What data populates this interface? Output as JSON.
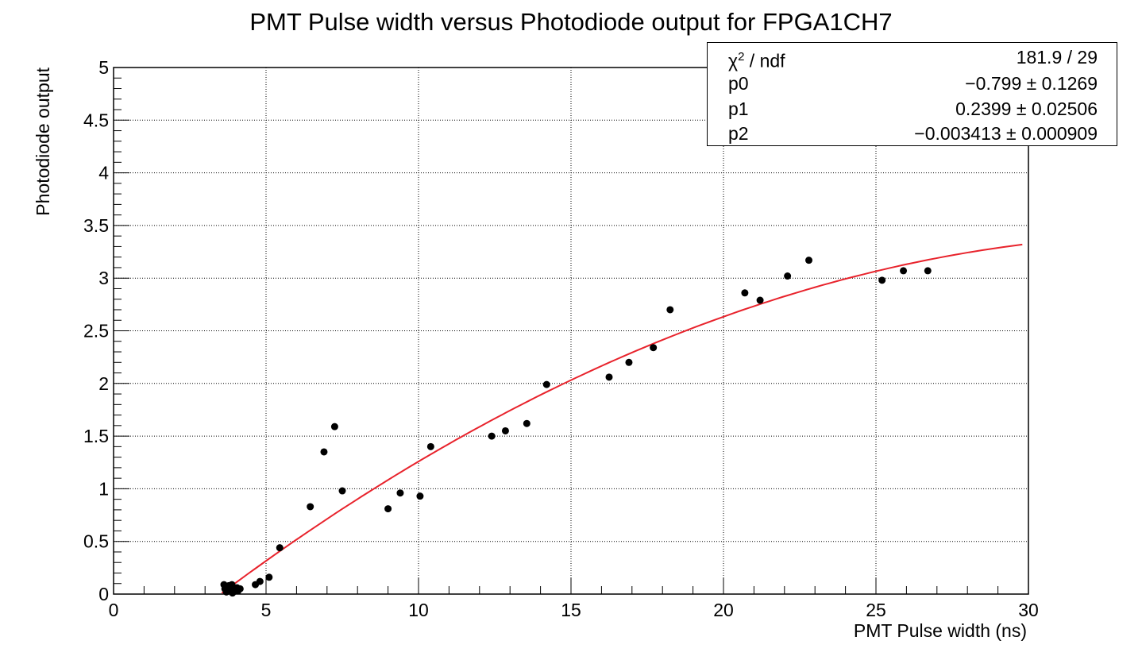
{
  "chart_data": {
    "type": "scatter",
    "title": "PMT Pulse width versus Photodiode output for FPGA1CH7",
    "xlabel": "PMT Pulse width (ns)",
    "ylabel": "Photodiode output",
    "xlim": [
      0,
      30
    ],
    "ylim": [
      0,
      5
    ],
    "x_ticks": [
      "0",
      "5",
      "10",
      "15",
      "20",
      "25",
      "30"
    ],
    "y_ticks": [
      "0",
      "0.5",
      "1",
      "1.5",
      "2",
      "2.5",
      "3",
      "3.5",
      "4",
      "4.5",
      "5"
    ],
    "grid": true,
    "points": [
      {
        "x": 3.62,
        "y": 0.09
      },
      {
        "x": 3.65,
        "y": 0.05
      },
      {
        "x": 3.7,
        "y": 0.02
      },
      {
        "x": 3.78,
        "y": 0.08
      },
      {
        "x": 3.82,
        "y": 0.05
      },
      {
        "x": 3.88,
        "y": 0.09
      },
      {
        "x": 3.9,
        "y": 0.01
      },
      {
        "x": 3.95,
        "y": 0.04
      },
      {
        "x": 4.05,
        "y": 0.06
      },
      {
        "x": 4.08,
        "y": 0.03
      },
      {
        "x": 4.15,
        "y": 0.05
      },
      {
        "x": 4.65,
        "y": 0.09
      },
      {
        "x": 4.8,
        "y": 0.12
      },
      {
        "x": 5.1,
        "y": 0.16
      },
      {
        "x": 5.45,
        "y": 0.44
      },
      {
        "x": 6.45,
        "y": 0.83
      },
      {
        "x": 6.9,
        "y": 1.35
      },
      {
        "x": 7.25,
        "y": 1.59
      },
      {
        "x": 7.5,
        "y": 0.98
      },
      {
        "x": 9.0,
        "y": 0.81
      },
      {
        "x": 9.4,
        "y": 0.96
      },
      {
        "x": 10.05,
        "y": 0.93
      },
      {
        "x": 10.4,
        "y": 1.4
      },
      {
        "x": 12.4,
        "y": 1.5
      },
      {
        "x": 12.85,
        "y": 1.55
      },
      {
        "x": 13.55,
        "y": 1.62
      },
      {
        "x": 14.2,
        "y": 1.99
      },
      {
        "x": 16.25,
        "y": 2.06
      },
      {
        "x": 16.9,
        "y": 2.2
      },
      {
        "x": 17.7,
        "y": 2.34
      },
      {
        "x": 18.25,
        "y": 2.7
      },
      {
        "x": 20.7,
        "y": 2.86
      },
      {
        "x": 21.2,
        "y": 2.79
      },
      {
        "x": 22.1,
        "y": 3.02
      },
      {
        "x": 22.8,
        "y": 3.17
      },
      {
        "x": 25.2,
        "y": 2.98
      },
      {
        "x": 25.9,
        "y": 3.07
      },
      {
        "x": 26.7,
        "y": 3.07
      }
    ],
    "fit": {
      "function": "pol2",
      "color": "#e8232c",
      "x_range": [
        3.55,
        29.8
      ],
      "p0": -0.799,
      "p1": 0.2399,
      "p2": -0.003413
    },
    "marker_color": "#000000"
  },
  "stats": {
    "chi2_symbol": "χ",
    "chi2_sup": "2",
    "chi2_rest": " / ndf",
    "chi2_value": "181.9 / 29",
    "rows": [
      {
        "label": "p0",
        "value": "−0.799 ± 0.1269"
      },
      {
        "label": "p1",
        "value": "0.2399 ± 0.02506"
      },
      {
        "label": "p2",
        "value": "−0.003413 ± 0.000909"
      }
    ]
  }
}
